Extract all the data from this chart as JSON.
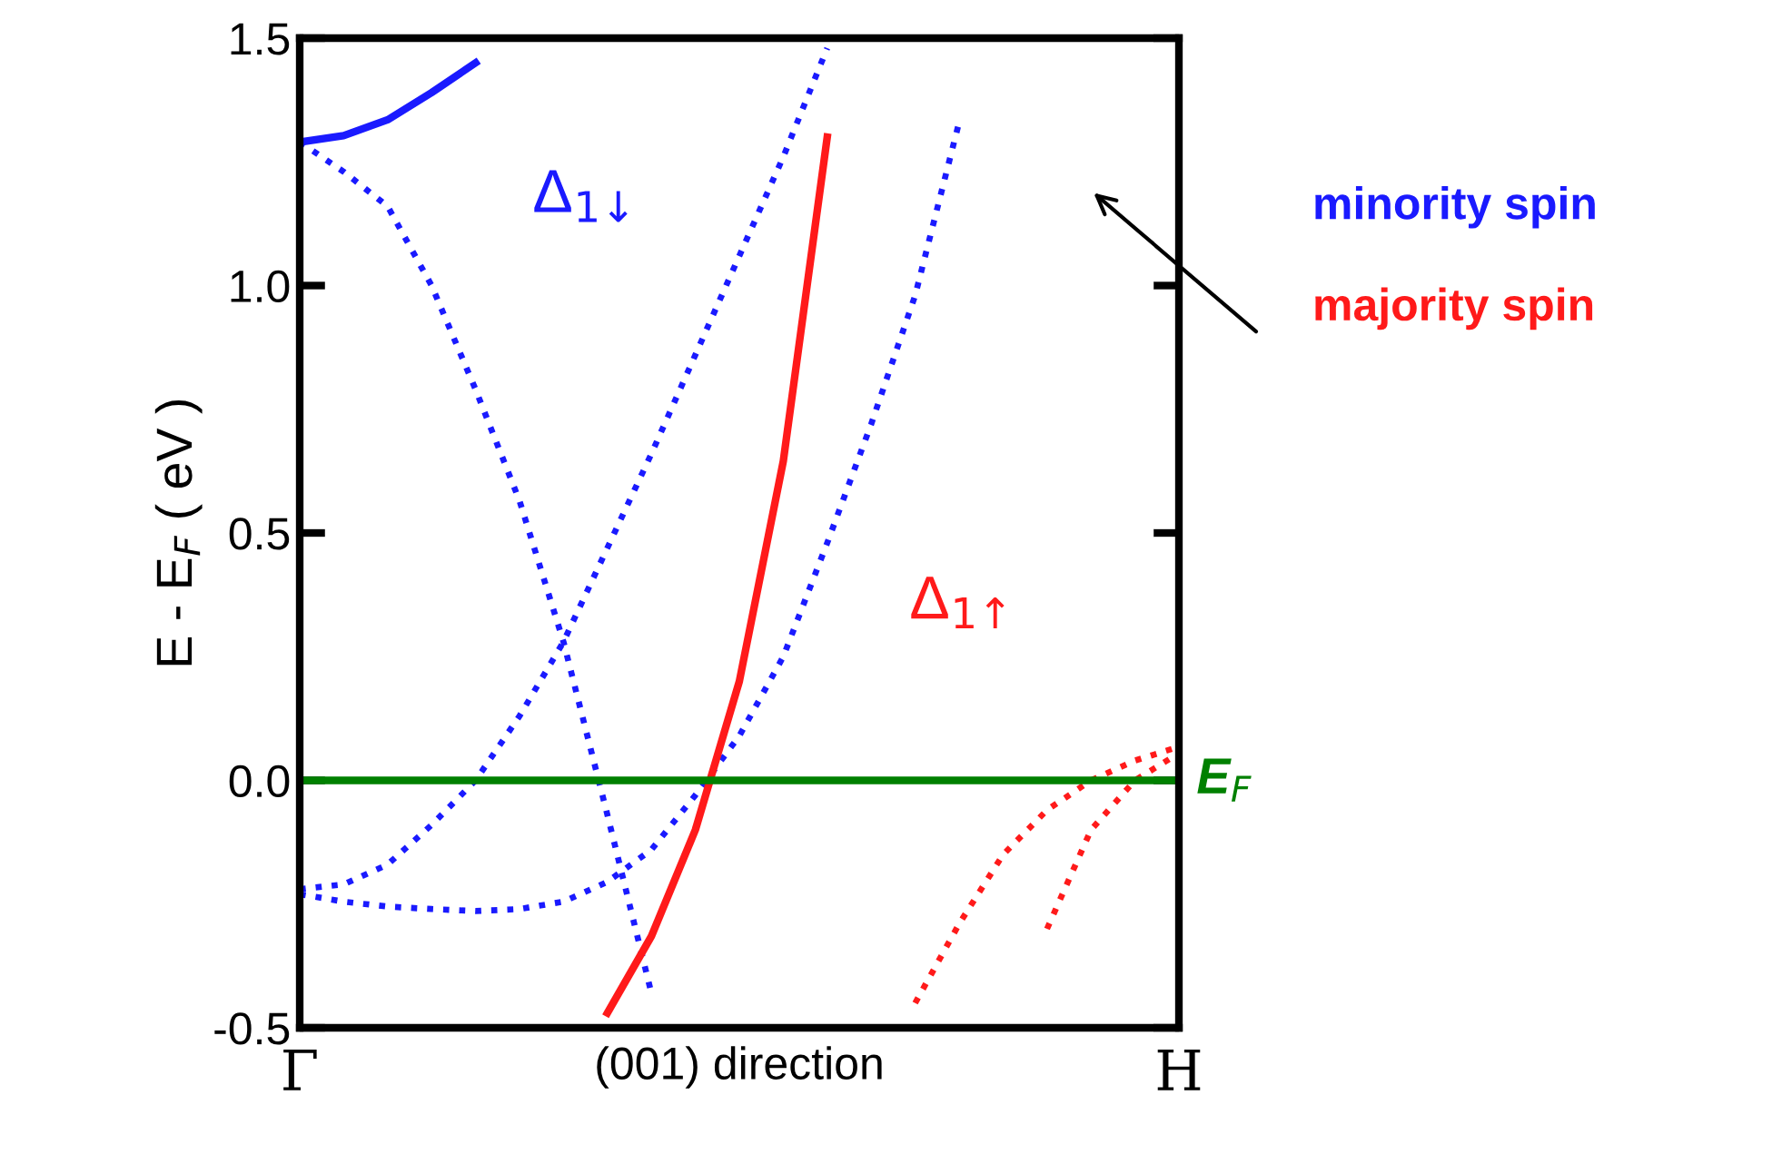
{
  "chart_data": {
    "type": "line",
    "xlabel": "(001) direction",
    "ylabel": "E - E$_{F}$ ( eV )",
    "categories": [
      "Γ",
      null,
      null,
      null,
      null,
      null,
      null,
      null,
      null,
      null,
      null,
      null,
      null,
      null,
      null,
      null,
      null,
      null,
      null,
      null,
      "H"
    ],
    "ylim": [
      -0.5,
      1.5
    ],
    "yticks": [
      {
        "value": -0.5,
        "label": "-0.5"
      },
      {
        "value": 0,
        "label": "0.0"
      },
      {
        "value": 0.5,
        "label": "0.5"
      },
      {
        "value": 1,
        "label": "1.0"
      },
      {
        "value": 1.5,
        "label": "1.5"
      }
    ],
    "grid": false,
    "legend": "right",
    "marker": "none",
    "series": [
      {
        "name": "minority spin",
        "color": "#1a1aff",
        "line_style": "solid",
        "values": [
          1.29,
          1.303,
          1.335,
          1.39,
          1.45,
          null,
          null,
          null,
          null,
          null,
          null,
          null,
          null,
          null,
          null,
          null,
          null,
          null,
          null,
          null,
          null
        ]
      },
      {
        "color": "#1a1aff",
        "line_style": "dotted",
        "values": [
          1.29,
          1.23,
          1.16,
          1.0,
          0.79,
          0.565,
          0.28,
          -0.07,
          -0.43,
          null,
          null,
          null,
          null,
          null,
          null,
          null,
          null,
          null,
          null,
          null,
          null
        ]
      },
      {
        "color": "#1a1aff",
        "line_style": "dotted",
        "values": [
          -0.22,
          -0.21,
          -0.17,
          -0.09,
          0.0,
          0.13,
          0.28,
          0.47,
          0.66,
          0.86,
          1.06,
          1.26,
          1.48,
          null,
          null,
          null,
          null,
          null,
          null,
          null,
          null
        ]
      },
      {
        "color": "#1a1aff",
        "line_style": "dotted",
        "values": [
          -0.23,
          -0.245,
          -0.255,
          -0.26,
          -0.264,
          -0.26,
          -0.245,
          -0.205,
          -0.14,
          -0.03,
          0.09,
          0.25,
          0.48,
          0.72,
          0.98,
          1.33,
          null,
          null,
          null,
          null,
          null
        ]
      },
      {
        "name": "majority spin",
        "color": "#ff1a1a",
        "line_style": "solid",
        "values": [
          null,
          null,
          null,
          null,
          null,
          null,
          null,
          -0.47,
          -0.315,
          -0.1,
          0.2,
          0.645,
          1.3,
          null,
          null,
          null,
          null,
          null,
          null,
          null,
          null
        ]
      },
      {
        "color": "#ff1a1a",
        "line_style": "dotted",
        "values": [
          null,
          null,
          null,
          null,
          null,
          null,
          null,
          null,
          null,
          null,
          null,
          null,
          null,
          null,
          -0.45,
          -0.29,
          -0.15,
          -0.06,
          0.0,
          0.04,
          0.068
        ]
      },
      {
        "color": "#ff1a1a",
        "line_style": "dotted",
        "values": [
          null,
          null,
          null,
          null,
          null,
          null,
          null,
          null,
          null,
          null,
          null,
          null,
          null,
          null,
          null,
          null,
          null,
          -0.3,
          -0.1,
          0.0,
          0.055
        ]
      }
    ],
    "ref_lines": [
      {
        "axis": "y",
        "value": 0,
        "label": "E$_{F}$",
        "color": "#008000",
        "line_style": "solid"
      }
    ],
    "annotations": [
      "Δ$_{1↓}$",
      "Δ$_{1↑}$"
    ]
  }
}
